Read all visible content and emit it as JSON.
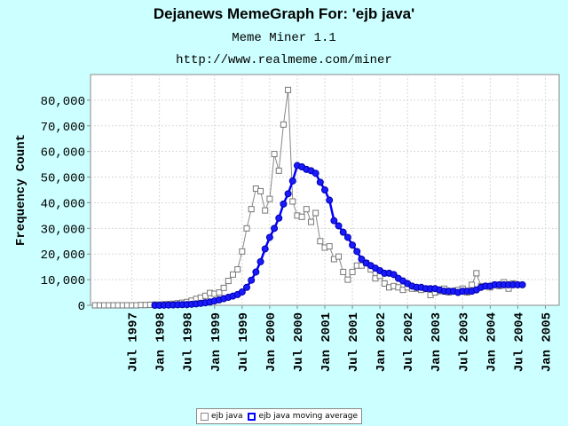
{
  "header": {
    "title": "Dejanews MemeGraph For: 'ejb java'",
    "subtitle": "Meme Miner 1.1",
    "url": "http://www.realmeme.com/miner"
  },
  "colors": {
    "background": "#ccffff",
    "plot_background": "#ffffff",
    "raw_series": "#888888",
    "average_series": "#0000ff"
  },
  "chart_data": {
    "type": "line",
    "ylabel": "Frequency Count",
    "xlabel": "",
    "ylim": [
      0,
      90000
    ],
    "yticks": [
      0,
      10000,
      20000,
      30000,
      40000,
      50000,
      60000,
      70000,
      80000
    ],
    "ytick_labels": [
      "0",
      "10,000",
      "20,000",
      "30,000",
      "40,000",
      "50,000",
      "60,000",
      "70,000",
      "80,000"
    ],
    "x_unit": "month",
    "xlim": [
      "1996-10",
      "2005-04"
    ],
    "x_ticks": [
      "1997-07",
      "1998-01",
      "1998-07",
      "1999-01",
      "1999-07",
      "2000-01",
      "2000-07",
      "2001-01",
      "2001-07",
      "2002-01",
      "2002-07",
      "2003-01",
      "2003-07",
      "2004-01",
      "2004-07",
      "2005-01"
    ],
    "x_tick_labels": [
      "Jul 1997",
      "Jan 1998",
      "Jul 1998",
      "Jan 1999",
      "Jul 1999",
      "Jan 2000",
      "Jul 2000",
      "Jan 2001",
      "Jul 2001",
      "Jan 2002",
      "Jul 2002",
      "Jan 2003",
      "Jul 2003",
      "Jan 2004",
      "Jul 2004",
      "Jan 2005"
    ],
    "grid": true,
    "legend_position": "bottom",
    "series": [
      {
        "name": "ejb java",
        "marker": "square",
        "x_start": "1996-11",
        "values": [
          0,
          0,
          0,
          0,
          0,
          0,
          0,
          0,
          0,
          0,
          100,
          100,
          200,
          300,
          300,
          400,
          500,
          600,
          800,
          1000,
          1300,
          1800,
          2500,
          3000,
          3700,
          4800,
          4500,
          5000,
          6800,
          9500,
          12000,
          14000,
          21000,
          30000,
          37500,
          45500,
          44500,
          37000,
          41500,
          59000,
          52500,
          70500,
          84000,
          40500,
          35000,
          34500,
          37500,
          32500,
          36000,
          25000,
          22500,
          23000,
          18000,
          19000,
          13000,
          10000,
          13000,
          15500,
          15500,
          16500,
          14000,
          10500,
          11500,
          8500,
          7000,
          7500,
          7000,
          6000,
          7000,
          6500,
          6500,
          6000,
          6500,
          4000,
          5000,
          5500,
          6500,
          5000,
          5500,
          6000,
          6500,
          5000,
          8000,
          12500,
          7500,
          7500,
          7000,
          8000,
          7500,
          9000,
          6500,
          8500
        ]
      },
      {
        "name": "ejb java moving average",
        "marker": "circle",
        "x_start": "1997-12",
        "values": [
          0,
          0,
          50,
          100,
          150,
          200,
          250,
          300,
          400,
          550,
          750,
          1000,
          1300,
          1700,
          2100,
          2600,
          3100,
          3600,
          4200,
          5200,
          7000,
          9800,
          13000,
          17000,
          22000,
          26500,
          30000,
          34000,
          39500,
          43500,
          48500,
          54500,
          54000,
          53000,
          52500,
          51500,
          48000,
          45000,
          41000,
          33000,
          31000,
          28500,
          26500,
          23500,
          21000,
          18000,
          16500,
          15500,
          14500,
          13500,
          12500,
          12500,
          12000,
          10500,
          9500,
          8500,
          7500,
          7000,
          7000,
          6500,
          6500,
          6500,
          6000,
          5500,
          5500,
          5500,
          5000,
          5500,
          5500,
          5500,
          6000,
          7000,
          7500,
          7500,
          8000,
          8000,
          8000,
          8000,
          8000,
          8000,
          8000
        ]
      }
    ]
  }
}
